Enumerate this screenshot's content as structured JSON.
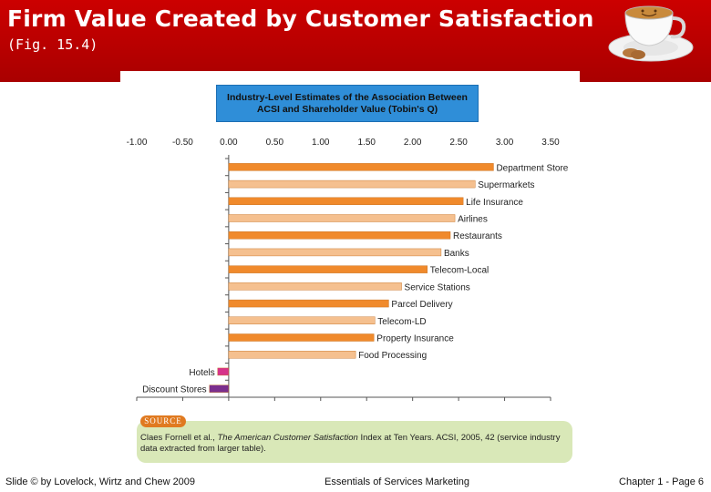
{
  "header": {
    "title": "Firm Value Created by Customer Satisfaction",
    "subtitle": "(Fig. 15.4)"
  },
  "source": {
    "tag": "SOURCE",
    "text_prefix": "Claes Fornell et al., ",
    "text_italic": "The American Customer Satisfaction",
    "text_suffix": " Index at Ten Years. ACSI, 2005, 42 (service industry data extracted from larger table)."
  },
  "footer": {
    "left": "Slide © by Lovelock, Wirtz and Chew 2009",
    "center": "Essentials of Services Marketing",
    "right": "Chapter 1 - Page 6"
  },
  "chart_data": {
    "type": "bar",
    "orientation": "horizontal",
    "title": "Industry-Level Estimates of the Association Between ACSI and Shareholder Value (Tobin's Q)",
    "title_lines": [
      "Industry-Level Estimates of the Association Between",
      "ACSI and Shareholder Value (Tobin's Q)"
    ],
    "xlim": [
      -1.0,
      3.5
    ],
    "ticks": [
      "-1.00",
      "-0.50",
      "0.00",
      "0.50",
      "1.00",
      "1.50",
      "2.00",
      "2.50",
      "3.00",
      "3.50"
    ],
    "categories": [
      "Department Store",
      "Supermarkets",
      "Life Insurance",
      "Airlines",
      "Restaurants",
      "Banks",
      "Telecom-Local",
      "Service Stations",
      "Parcel Delivery",
      "Telecom-LD",
      "Property Insurance",
      "Food Processing",
      "Hotels",
      "Discount Stores"
    ],
    "values": [
      2.88,
      2.68,
      2.55,
      2.46,
      2.41,
      2.31,
      2.16,
      1.88,
      1.74,
      1.59,
      1.58,
      1.38,
      -0.12,
      -0.21
    ],
    "colors": [
      "#f08a2c",
      "#f5c08f",
      "#f08a2c",
      "#f5c08f",
      "#f08a2c",
      "#f5c08f",
      "#f08a2c",
      "#f5c08f",
      "#f08a2c",
      "#f5c08f",
      "#f08a2c",
      "#f5c08f",
      "#d6338a",
      "#7b2f8e"
    ]
  }
}
